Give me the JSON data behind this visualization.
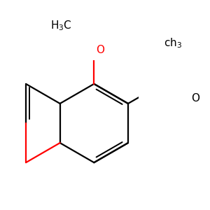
{
  "bg_color": "#ffffff",
  "bond_color": "#000000",
  "heteroatom_color": "#ff0000",
  "line_width": 1.6,
  "figsize": [
    3.0,
    3.0
  ],
  "dpi": 100,
  "xlim": [
    -0.5,
    3.0
  ],
  "ylim": [
    -1.8,
    1.6
  ],
  "font_size": 11
}
